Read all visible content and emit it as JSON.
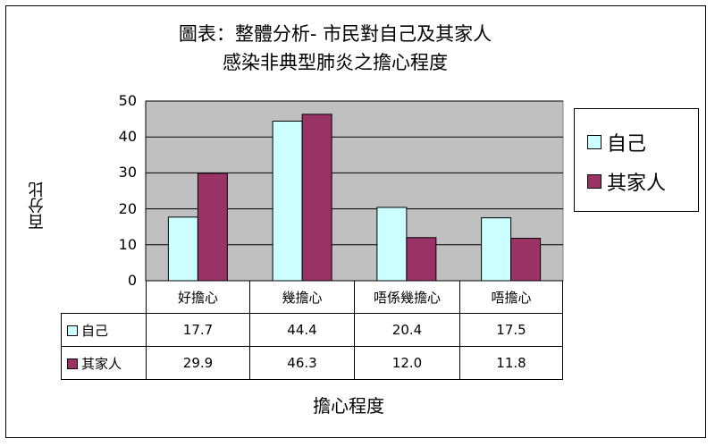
{
  "chart_data": {
    "type": "bar",
    "title_line1": "圖表：整體分析- 市民對自己及其家人",
    "title_line2": "感染非典型肺炎之擔心程度",
    "xlabel": "擔心程度",
    "ylabel": "百分比",
    "categories": [
      "好擔心",
      "幾擔心",
      "唔係幾擔心",
      "唔擔心"
    ],
    "series": [
      {
        "name": "自己",
        "color": "#ccffff",
        "values": [
          17.7,
          44.4,
          20.4,
          17.5
        ],
        "labels": [
          "17.7",
          "44.4",
          "20.4",
          "17.5"
        ]
      },
      {
        "name": "其家人",
        "color": "#993366",
        "values": [
          29.9,
          46.3,
          12.0,
          11.8
        ],
        "labels": [
          "29.9",
          "46.3",
          "12.0",
          "11.8"
        ]
      }
    ],
    "ylim": [
      0,
      50
    ],
    "yticks": [
      "0",
      "10",
      "20",
      "30",
      "40",
      "50"
    ],
    "grid": true,
    "plot_background": "#c0c0c0",
    "legend_position": "right"
  }
}
